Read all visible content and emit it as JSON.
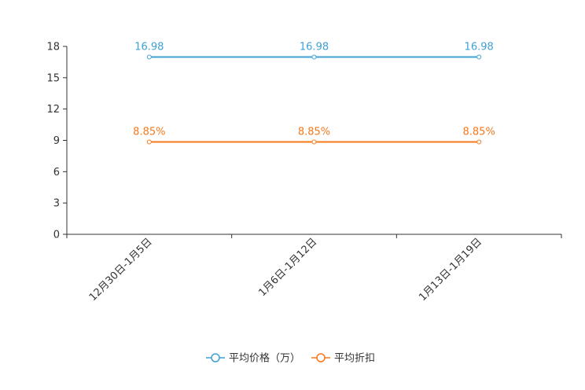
{
  "chart_data": {
    "type": "line",
    "title": "",
    "xlabel": "",
    "ylabel": "",
    "categories": [
      "12月30日-1月5日",
      "1月6日-1月12日",
      "1月13日-1月19日"
    ],
    "ylim": [
      0,
      18
    ],
    "yticks": [
      0,
      3,
      6,
      9,
      12,
      15,
      18
    ],
    "grid": false,
    "legend_position": "bottom",
    "series": [
      {
        "name": "平均价格（万）",
        "values": [
          16.98,
          16.98,
          16.98
        ],
        "labels": [
          "16.98",
          "16.98",
          "16.98"
        ],
        "color": "#3fa1d6"
      },
      {
        "name": "平均折扣",
        "values": [
          8.85,
          8.85,
          8.85
        ],
        "labels": [
          "8.85%",
          "8.85%",
          "8.85%"
        ],
        "color": "#f6781b"
      }
    ]
  }
}
